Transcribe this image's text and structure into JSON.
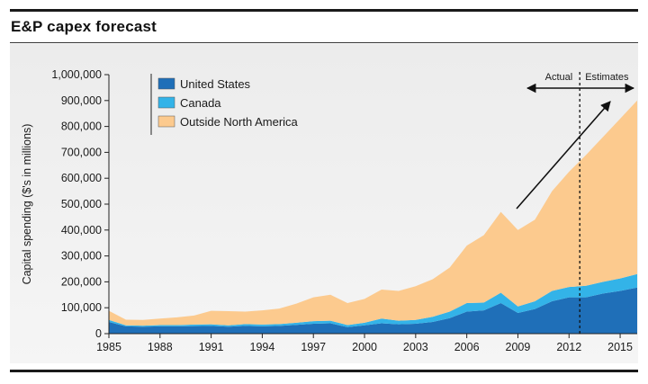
{
  "header": {
    "title": "E&P capex forecast"
  },
  "chart_data": {
    "type": "area",
    "stacked": true,
    "title": "E&P capex forecast",
    "xlabel": "",
    "ylabel": "Capital spending ($'s in millions)",
    "xlim": [
      1985,
      2016
    ],
    "ylim": [
      0,
      1000000
    ],
    "x_ticks": [
      "1985",
      "1988",
      "1991",
      "1994",
      "1997",
      "2000",
      "2003",
      "2006",
      "2009",
      "2012",
      "2015"
    ],
    "y_ticks": [
      "0",
      "100,000",
      "200,000",
      "300,000",
      "400,000",
      "500,000",
      "600,000",
      "700,000",
      "800,000",
      "900,000",
      "1,000,000"
    ],
    "x": [
      1985,
      1986,
      1987,
      1988,
      1989,
      1990,
      1991,
      1992,
      1993,
      1994,
      1995,
      1996,
      1997,
      1998,
      1999,
      2000,
      2001,
      2002,
      2003,
      2004,
      2005,
      2006,
      2007,
      2008,
      2009,
      2010,
      2011,
      2012,
      2013,
      2014,
      2015,
      2016
    ],
    "series": [
      {
        "name": "United States",
        "color": "#1f6fb8",
        "values": [
          45000,
          28000,
          27000,
          28000,
          28000,
          29000,
          30000,
          27000,
          30000,
          28000,
          30000,
          34000,
          38000,
          40000,
          25000,
          32000,
          40000,
          36000,
          38000,
          45000,
          60000,
          85000,
          90000,
          118000,
          80000,
          95000,
          125000,
          140000,
          140000,
          155000,
          165000,
          178000
        ]
      },
      {
        "name": "Canada",
        "color": "#33b3e8",
        "values": [
          8000,
          4000,
          4000,
          5000,
          5000,
          6000,
          6000,
          5000,
          7000,
          7000,
          7000,
          8000,
          10000,
          10000,
          8000,
          10000,
          18000,
          14000,
          15000,
          20000,
          25000,
          33000,
          30000,
          40000,
          25000,
          30000,
          40000,
          40000,
          45000,
          45000,
          48000,
          52000
        ]
      },
      {
        "name": "Outside North America",
        "color": "#fcca8e",
        "values": [
          35000,
          22000,
          22000,
          25000,
          30000,
          35000,
          52000,
          55000,
          48000,
          55000,
          60000,
          74000,
          92000,
          100000,
          85000,
          92000,
          112000,
          115000,
          130000,
          145000,
          170000,
          222000,
          260000,
          312000,
          295000,
          315000,
          385000,
          445000,
          505000,
          560000,
          617000,
          670000
        ]
      }
    ],
    "annotations": {
      "divider_year": 2013,
      "left_label": "Actual",
      "right_label": "Estimates"
    },
    "legend_position": "top-left"
  }
}
